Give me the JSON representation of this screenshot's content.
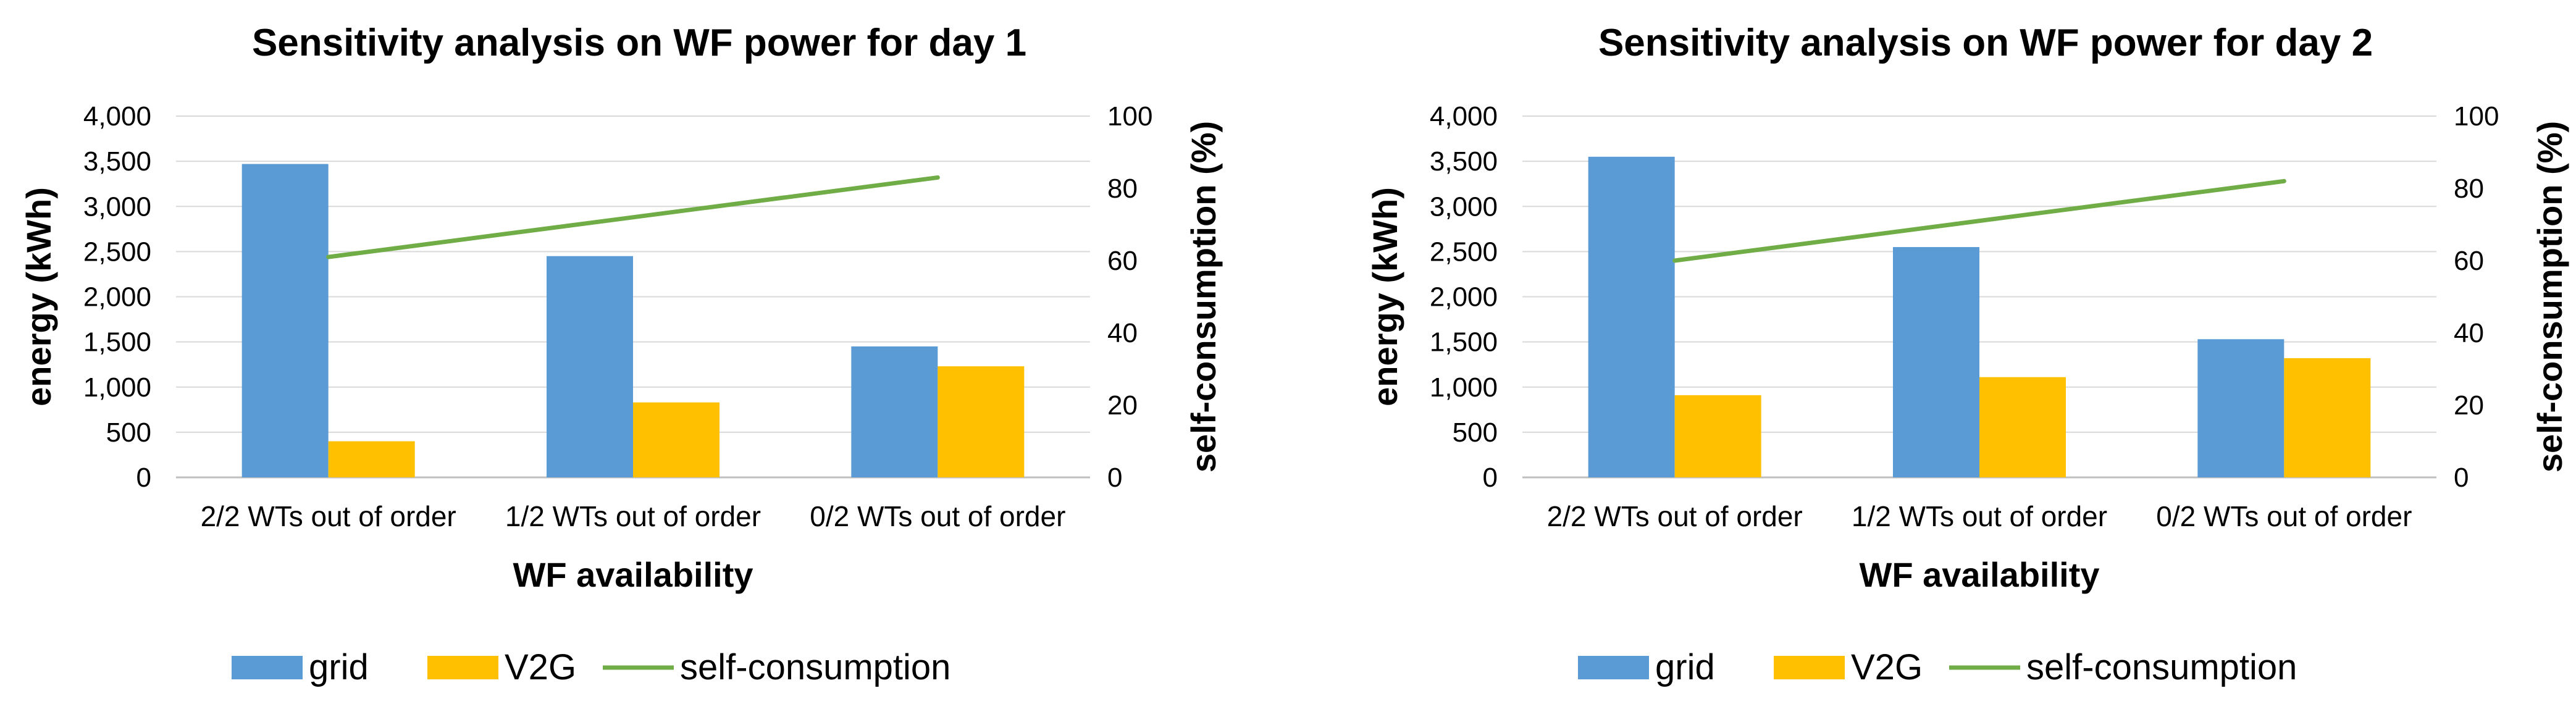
{
  "chart_data": [
    {
      "type": "bar",
      "title": "Sensitivity analysis on WF power for day 1",
      "xlabel": "WF availability",
      "ylabel": "energy (kWh)",
      "y2label": "self-consumption (%)",
      "categories": [
        "2/2 WTs out of order",
        "1/2 WTs out of order",
        "0/2 WTs out of order"
      ],
      "ylim": [
        0,
        4000
      ],
      "yticks": [
        0,
        500,
        1000,
        1500,
        2000,
        2500,
        3000,
        3500,
        4000
      ],
      "ytick_labels": [
        "0",
        "500",
        "1,000",
        "1,500",
        "2,000",
        "2,500",
        "3,000",
        "3,500",
        "4,000"
      ],
      "y2lim": [
        0,
        100
      ],
      "y2ticks": [
        0,
        20,
        40,
        60,
        80,
        100
      ],
      "y2tick_labels": [
        "0",
        "20",
        "40",
        "60",
        "80",
        "100"
      ],
      "grid": true,
      "legend_position": "bottom",
      "series": [
        {
          "name": "grid",
          "kind": "bar",
          "axis": "left",
          "color": "#5B9BD5",
          "values": [
            3470,
            2450,
            1450
          ]
        },
        {
          "name": "V2G",
          "kind": "bar",
          "axis": "left",
          "color": "#FFC000",
          "values": [
            400,
            830,
            1230
          ]
        },
        {
          "name": "self-consumption",
          "kind": "line",
          "axis": "right",
          "color": "#70AD47",
          "values": [
            61,
            72,
            83
          ]
        }
      ]
    },
    {
      "type": "bar",
      "title": "Sensitivity analysis on WF power for day 2",
      "xlabel": "WF availability",
      "ylabel": "energy (kWh)",
      "y2label": "self-consumption (%)",
      "categories": [
        "2/2 WTs out of order",
        "1/2 WTs out of order",
        "0/2 WTs out of order"
      ],
      "ylim": [
        0,
        4000
      ],
      "yticks": [
        0,
        500,
        1000,
        1500,
        2000,
        2500,
        3000,
        3500,
        4000
      ],
      "ytick_labels": [
        "0",
        "500",
        "1,000",
        "1,500",
        "2,000",
        "2,500",
        "3,000",
        "3,500",
        "4,000"
      ],
      "y2lim": [
        0,
        100
      ],
      "y2ticks": [
        0,
        20,
        40,
        60,
        80,
        100
      ],
      "y2tick_labels": [
        "0",
        "20",
        "40",
        "60",
        "80",
        "100"
      ],
      "grid": true,
      "legend_position": "bottom",
      "series": [
        {
          "name": "grid",
          "kind": "bar",
          "axis": "left",
          "color": "#5B9BD5",
          "values": [
            3550,
            2550,
            1530
          ]
        },
        {
          "name": "V2G",
          "kind": "bar",
          "axis": "left",
          "color": "#FFC000",
          "values": [
            910,
            1110,
            1320
          ]
        },
        {
          "name": "self-consumption",
          "kind": "line",
          "axis": "right",
          "color": "#70AD47",
          "values": [
            60,
            71,
            82
          ]
        }
      ]
    }
  ]
}
